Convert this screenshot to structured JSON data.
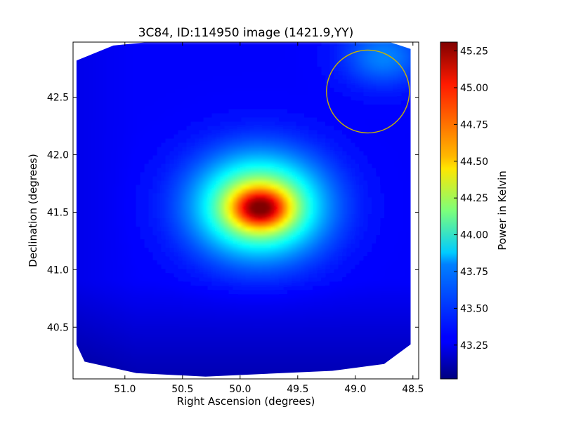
{
  "chart_data": {
    "type": "heatmap",
    "title": "3C84, ID:114950 image (1421.9,YY)",
    "xlabel": "Right Ascension (degrees)",
    "ylabel": "Declination (degrees)",
    "xlim": [
      51.45,
      48.45
    ],
    "ylim": [
      40.05,
      42.98
    ],
    "x_ticks": [
      51.0,
      50.5,
      50.0,
      49.5,
      49.0,
      48.5
    ],
    "x_tick_labels": [
      "51.0",
      "50.5",
      "50.0",
      "49.5",
      "49.0",
      "48.5"
    ],
    "y_ticks": [
      40.5,
      41.0,
      41.5,
      42.0,
      42.5
    ],
    "y_tick_labels": [
      "40.5",
      "41.0",
      "41.5",
      "42.0",
      "42.5"
    ],
    "colorbar": {
      "label": "Power in Kelvin",
      "range": [
        43.02,
        45.31
      ],
      "ticks": [
        43.25,
        43.5,
        43.75,
        44.0,
        44.25,
        44.5,
        44.75,
        45.0,
        45.25
      ],
      "tick_labels": [
        "43.25",
        "43.50",
        "43.75",
        "44.00",
        "44.25",
        "44.50",
        "44.75",
        "45.00",
        "45.25"
      ],
      "colormap": "jet"
    },
    "peak": {
      "ra": 49.83,
      "dec": 41.55,
      "value": 45.3
    },
    "beam_circle": {
      "ra": 48.89,
      "dec": 42.55,
      "radius_deg": 0.36,
      "color": "#c8b400"
    },
    "background_level": 43.3
  }
}
